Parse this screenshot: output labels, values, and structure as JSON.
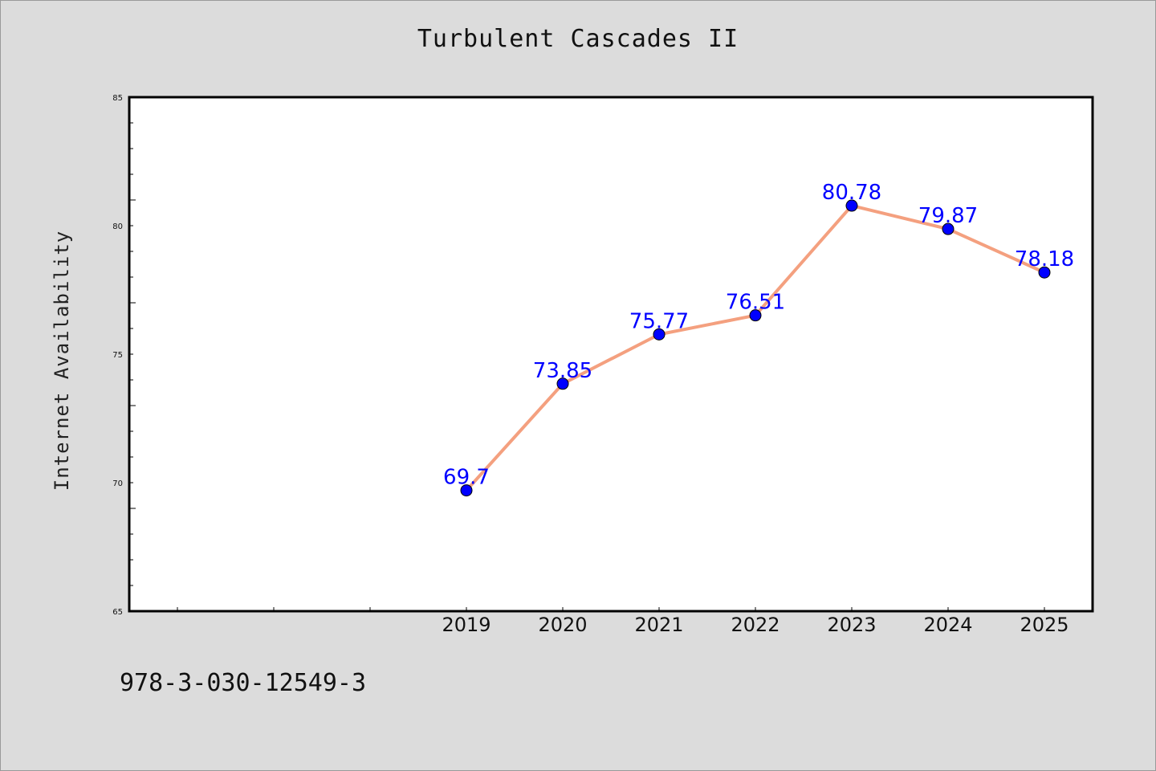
{
  "title": "Turbulent Cascades II",
  "footer_text": "978-3-030-12549-3",
  "chart_data": {
    "type": "line",
    "title": "Turbulent Cascades II",
    "xlabel": "",
    "ylabel": "Internet Availability",
    "x_range": [
      2015.5,
      2025.5
    ],
    "x_ticks": [
      2019,
      2020,
      2021,
      2022,
      2023,
      2024,
      2025
    ],
    "ylim": [
      65,
      85
    ],
    "y_ticks": [
      65,
      70,
      75,
      80,
      85
    ],
    "grid": false,
    "series": [
      {
        "x": [
          2019,
          2020,
          2021,
          2022,
          2023,
          2024,
          2025
        ],
        "values": [
          69.7,
          73.85,
          75.77,
          76.51,
          80.78,
          79.87,
          78.18
        ],
        "labels": [
          "69.7",
          "73.85",
          "75.77",
          "76.51",
          "80.78",
          "79.87",
          "78.18"
        ],
        "line_color": "#f4a07f",
        "marker_color": "#0000ff"
      }
    ]
  }
}
